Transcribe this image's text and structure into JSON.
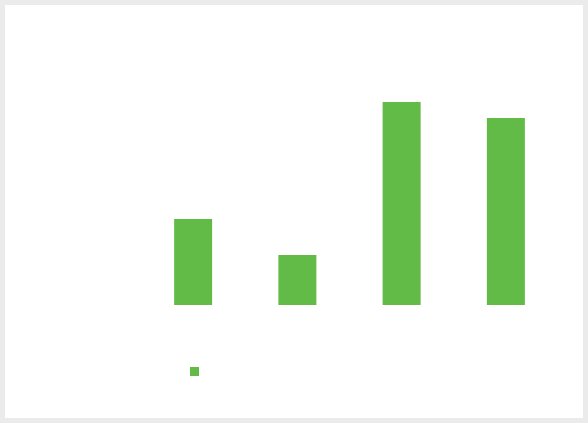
{
  "chart_data": {
    "type": "bar",
    "categories": [
      null,
      null,
      null,
      null
    ],
    "series": [
      {
        "color": "#62bb47",
        "values": [
          86,
          50,
          203,
          187
        ]
      }
    ],
    "ylim": [
      0,
      275
    ],
    "legend": "bottom"
  }
}
